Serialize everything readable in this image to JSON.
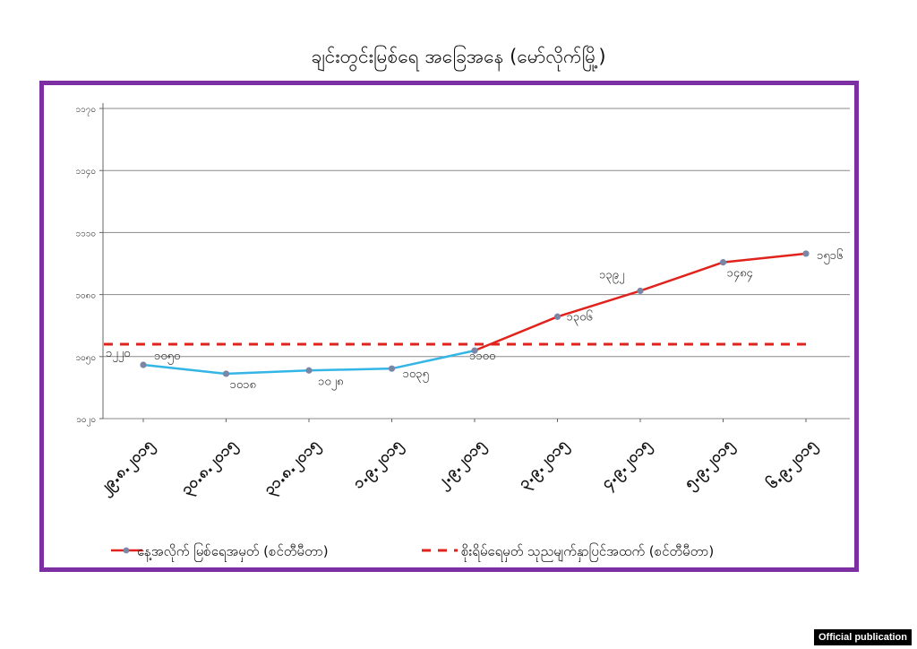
{
  "page": {
    "title": "ချင်းတွင်းမြစ်ရေ အခြေအနေ (မော်လိုက်မြို့)",
    "badge": "Official publication"
  },
  "chart_data": {
    "type": "line",
    "title": "ချင်းတွင်းမြစ်ရေ အခြေအနေ (မော်လိုက်မြို့)",
    "categories": [
      "၂၉.၈.၂၀၁၅",
      "၃၀.၈.၂၀၁၅",
      "၃၁.၈.၂၀၁၅",
      "၁.၉.၂၀၁၅",
      "၂.၉.၂၀၁၅",
      "၃.၉.၂၀၁၅",
      "၄.၉.၂၀၁၅",
      "၅.၉.၂၀၁၅",
      "၆.၉.၂၀၁၅"
    ],
    "ylim": [
      1020,
      1170
    ],
    "y_ticks": [
      1020,
      1050,
      1080,
      1110,
      1140,
      1170
    ],
    "y_tick_labels": [
      "၁၀၂၀",
      "၁၀၅၀",
      "၁၀၈၀",
      "၁၁၁၀",
      "၁၁၄၀",
      "၁၁၇၀"
    ],
    "grid": true,
    "legend_position": "bottom",
    "series": [
      {
        "name": "နေ့အလိုက် မြစ်ရေအမှတ် (စင်တီမီတာ)",
        "values": [
          1046.0,
          1041.7,
          1043.3,
          1044.2,
          1052.9,
          1069.3,
          1081.8,
          1095.6,
          1099.8
        ],
        "labels": [
          "၁၀၅၀",
          "၁၀၁၈",
          "၁၀၂၈",
          "၁၀၃၅",
          "၁၁၀၀",
          "၁၃၀၆",
          "၁၃၉၂",
          "၁၄၈၄",
          "၁၅၁၆"
        ],
        "colors": {
          "falling_segment": "#33b5e5",
          "rising_segment": "#e0231c",
          "marker": "#7a86a6"
        }
      },
      {
        "name": "စိုးရိမ်ရေမှတ် သုညမျက်နှာပြင်အထက် (စင်တီမီတာ)",
        "values": [
          1056.0,
          1056.0,
          1056.0,
          1056.0,
          1056.0,
          1056.0,
          1056.0,
          1056.0,
          1056.0
        ],
        "labels": [
          "၁၂၂၀"
        ],
        "color": "#e0231c",
        "style": "dashed"
      }
    ]
  }
}
